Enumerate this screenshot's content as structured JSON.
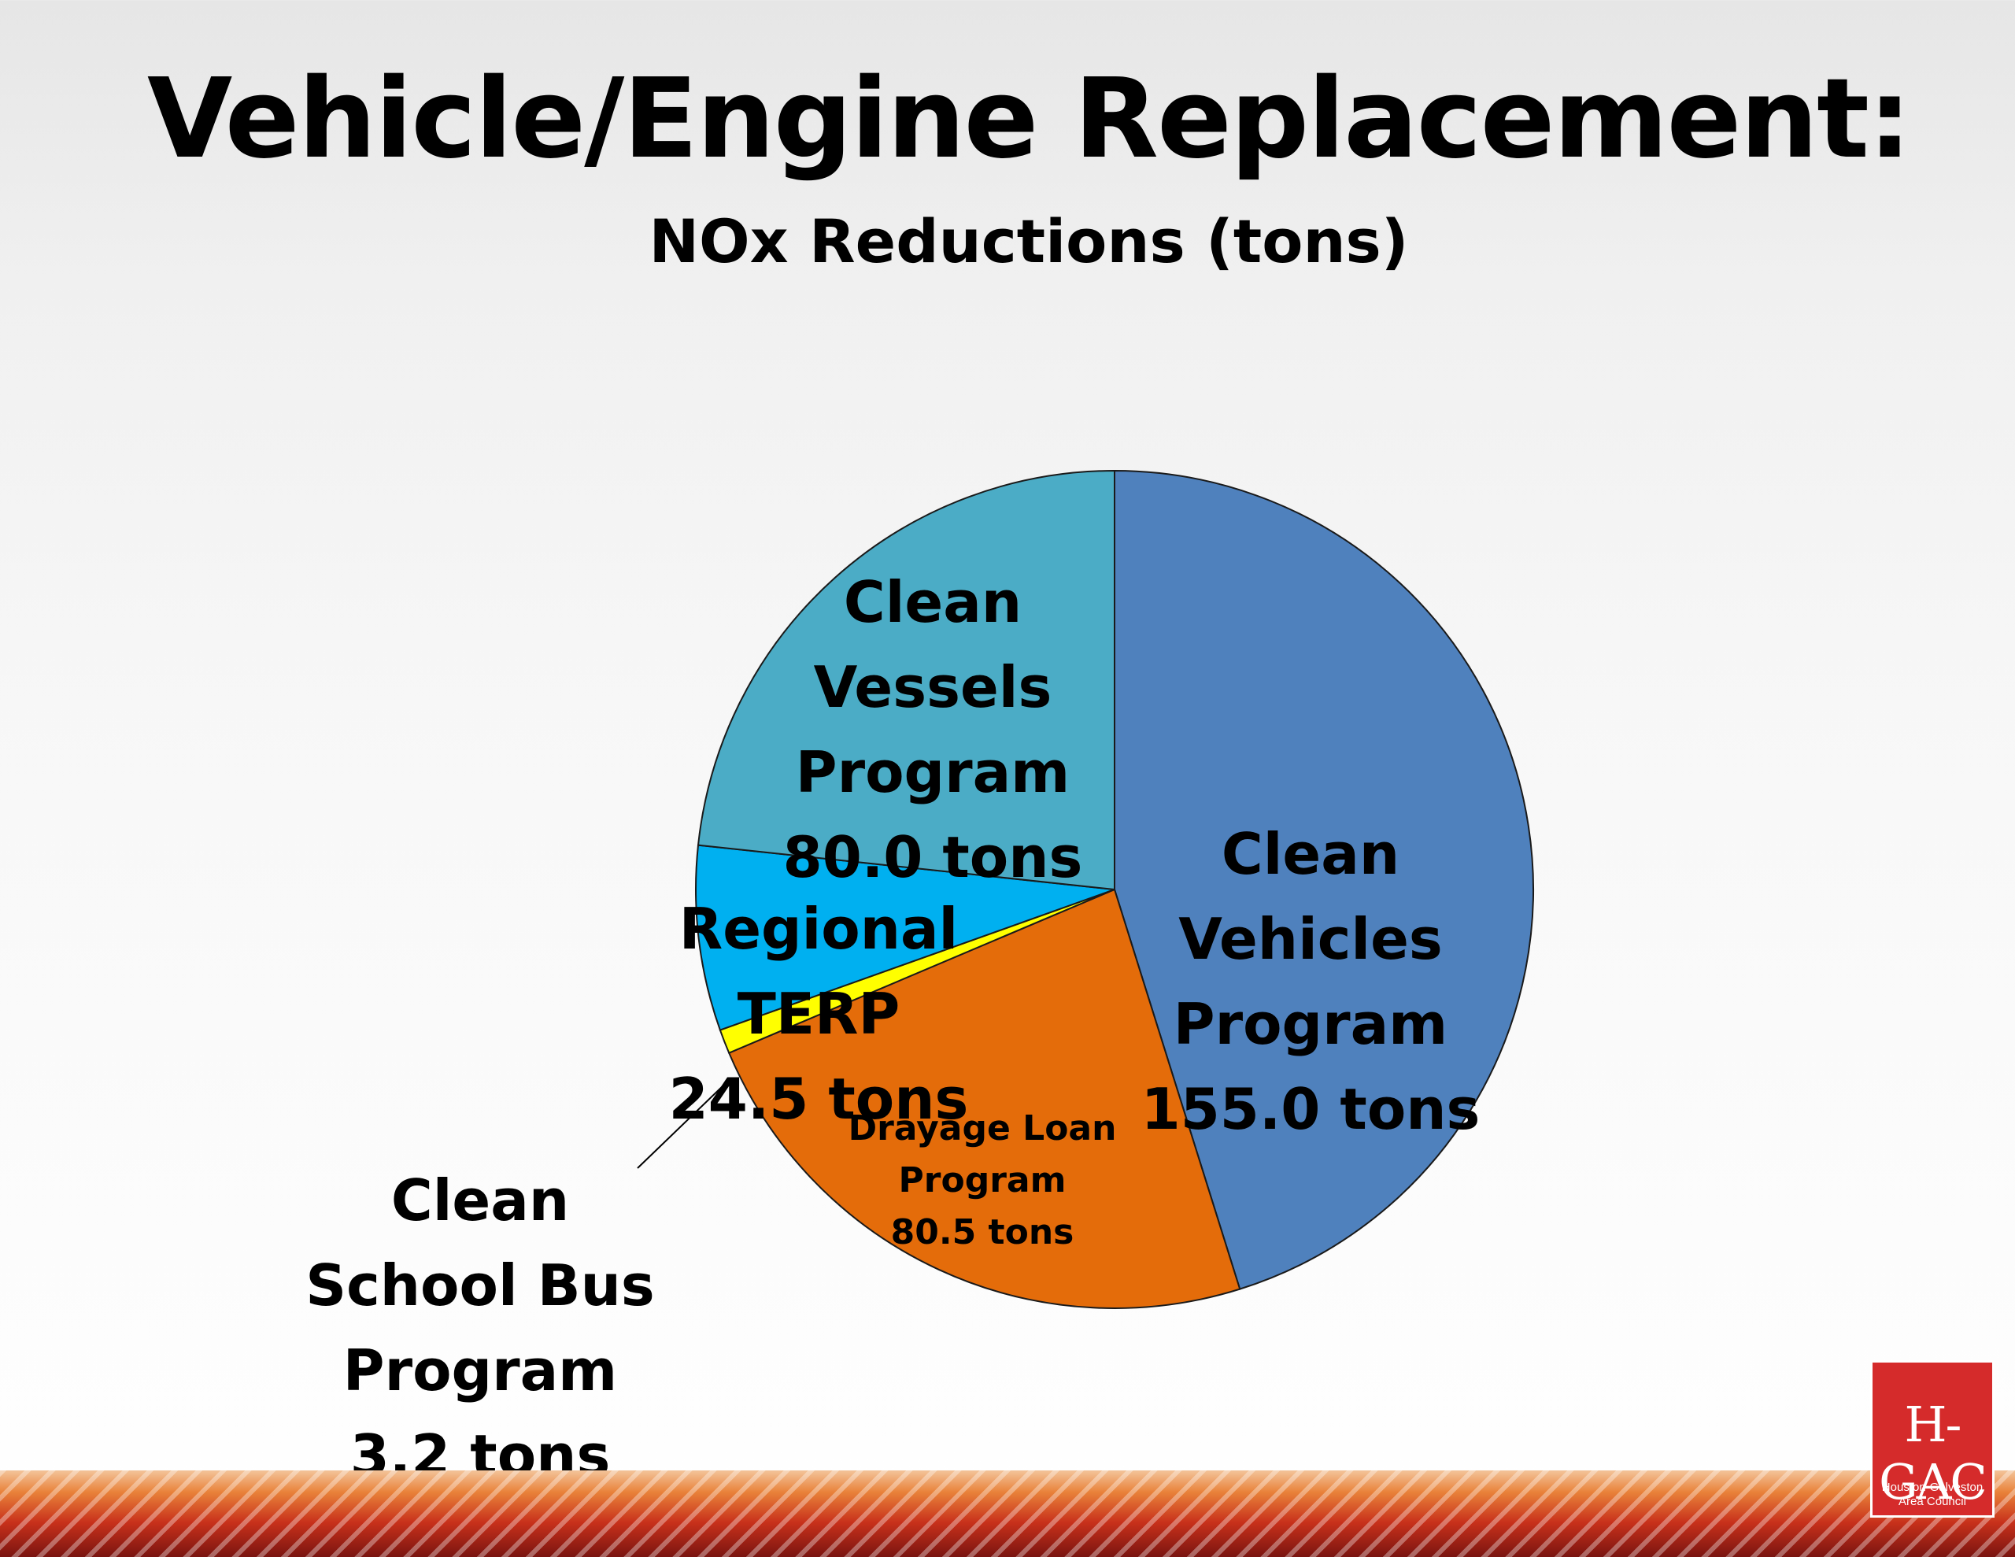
{
  "slide": {
    "title": "Vehicle/Engine Replacement:",
    "subtitle": "NOx Reductions (tons)"
  },
  "chart_data": {
    "type": "pie",
    "title": "NOx Reductions (tons)",
    "unit": "tons",
    "start_angle_deg": 0,
    "direction": "clockwise",
    "slices": [
      {
        "label_lines": [
          "Clean",
          "Vehicles",
          "Program",
          "155.0 tons"
        ],
        "value": 155.0,
        "color": "#4f81bd"
      },
      {
        "label_lines": [
          "Drayage Loan",
          "Program",
          "80.5 tons"
        ],
        "value": 80.5,
        "color": "#e46c0a"
      },
      {
        "label_lines": [
          "Clean",
          "School Bus",
          "Program",
          "3.2 tons"
        ],
        "value": 3.2,
        "color": "#ffff00"
      },
      {
        "label_lines": [
          "Regional",
          "TERP",
          "24.5 tons"
        ],
        "value": 24.5,
        "color": "#00b0f0"
      },
      {
        "label_lines": [
          "Clean",
          "Vessels",
          "Program",
          "80.0 tons"
        ],
        "value": 80.0,
        "color": "#4bacc6"
      }
    ]
  },
  "logo": {
    "mark": "H-GAC",
    "caption": "Houston-Galveston Area Council"
  }
}
